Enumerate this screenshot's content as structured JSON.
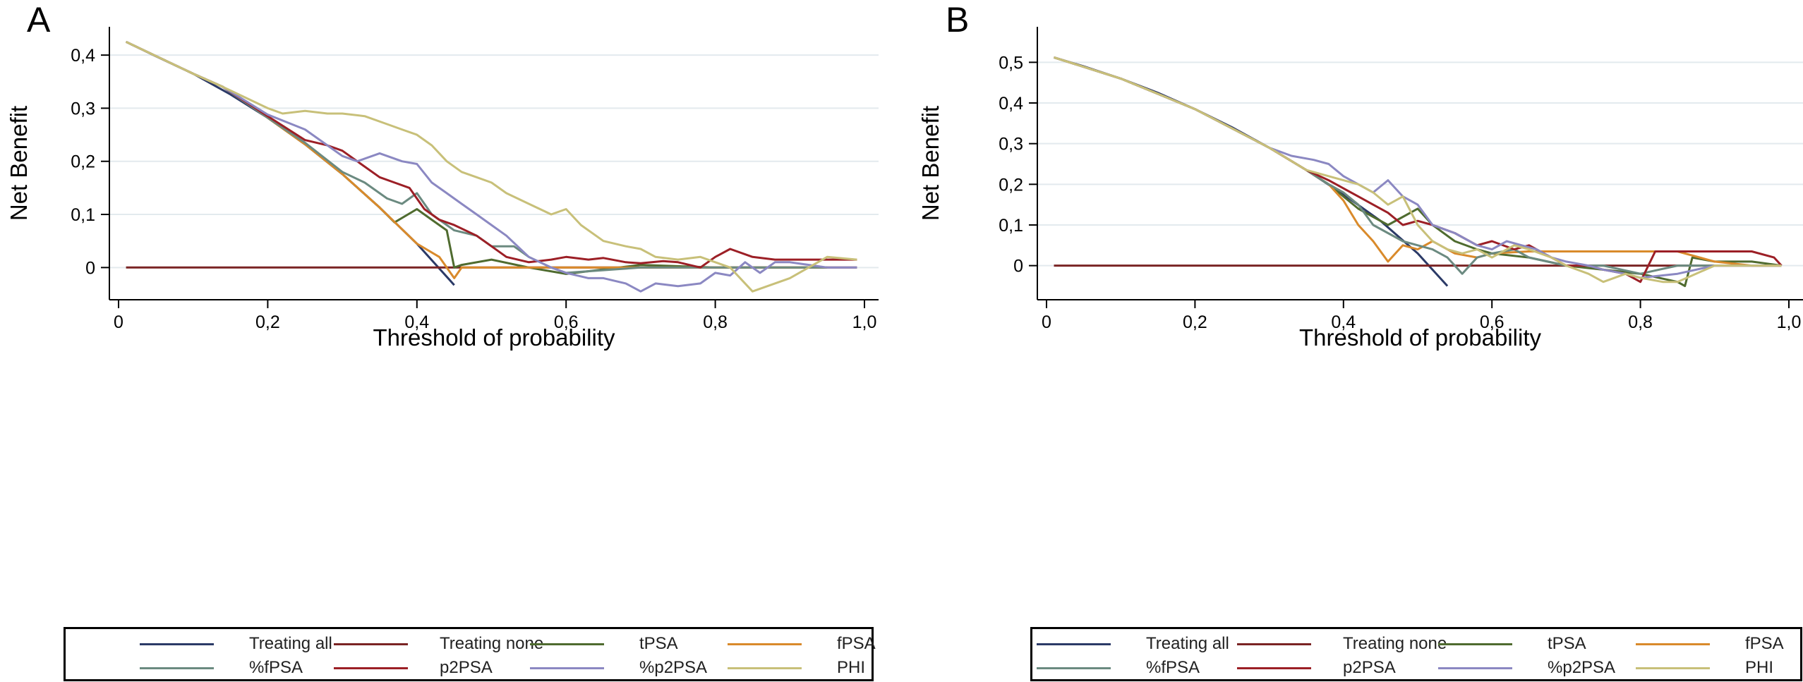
{
  "chart_data": [
    {
      "type": "line",
      "panel_label": "A",
      "xlabel": "Threshold of probability",
      "ylabel": "Net Benefit",
      "xlim": [
        0,
        1.0
      ],
      "ylim": [
        -0.05,
        0.44
      ],
      "xticks": [
        0,
        0.2,
        0.4,
        0.6,
        0.8,
        1.0
      ],
      "xtick_labels": [
        "0",
        "0,2",
        "0,4",
        "0,6",
        "0,8",
        "1,0"
      ],
      "yticks": [
        0,
        0.1,
        0.2,
        0.3,
        0.4
      ],
      "ytick_labels": [
        "0",
        "0,1",
        "0,2",
        "0,3",
        "0,4"
      ],
      "grid": true,
      "legend_position": "bottom",
      "series": [
        {
          "name": "Treating all",
          "color": "#2b3a67",
          "x": [
            0.01,
            0.05,
            0.1,
            0.15,
            0.2,
            0.25,
            0.3,
            0.35,
            0.4,
            0.45
          ],
          "y": [
            0.425,
            0.398,
            0.365,
            0.326,
            0.282,
            0.232,
            0.176,
            0.113,
            0.045,
            -0.033
          ]
        },
        {
          "name": "Treating none",
          "color": "#7a2424",
          "x": [
            0.01,
            0.99
          ],
          "y": [
            0,
            0
          ]
        },
        {
          "name": "tPSA",
          "color": "#4f6b2f",
          "x": [
            0.01,
            0.1,
            0.14,
            0.2,
            0.25,
            0.3,
            0.35,
            0.37,
            0.4,
            0.42,
            0.44,
            0.45,
            0.46,
            0.5,
            0.55,
            0.6,
            0.7,
            0.8,
            0.9,
            0.95
          ],
          "y": [
            0.425,
            0.365,
            0.34,
            0.282,
            0.232,
            0.176,
            0.113,
            0.085,
            0.11,
            0.09,
            0.07,
            0.0,
            0.005,
            0.015,
            0.0,
            -0.012,
            0.005,
            0.0,
            0.0,
            0.0
          ]
        },
        {
          "name": "fPSA",
          "color": "#d98a2b",
          "x": [
            0.01,
            0.1,
            0.14,
            0.2,
            0.25,
            0.3,
            0.35,
            0.4,
            0.43,
            0.45,
            0.46,
            0.47,
            0.5,
            0.55,
            0.6,
            0.7,
            0.8,
            0.9,
            0.95
          ],
          "y": [
            0.425,
            0.365,
            0.34,
            0.282,
            0.232,
            0.176,
            0.113,
            0.045,
            0.02,
            -0.02,
            0.0,
            0.0,
            0.0,
            0.0,
            0.0,
            0.0,
            0.0,
            0.0,
            0.0
          ]
        },
        {
          "name": "%fPSA",
          "color": "#6b8a80",
          "x": [
            0.01,
            0.1,
            0.14,
            0.2,
            0.25,
            0.3,
            0.33,
            0.36,
            0.38,
            0.4,
            0.42,
            0.45,
            0.48,
            0.5,
            0.53,
            0.55,
            0.58,
            0.6,
            0.7,
            0.8,
            0.9,
            0.95
          ],
          "y": [
            0.425,
            0.365,
            0.34,
            0.282,
            0.235,
            0.18,
            0.16,
            0.13,
            0.12,
            0.14,
            0.1,
            0.07,
            0.06,
            0.04,
            0.04,
            0.02,
            0.0,
            -0.01,
            0.0,
            0.0,
            0.0,
            0.0
          ]
        },
        {
          "name": "p2PSA",
          "color": "#9c1f26",
          "x": [
            0.01,
            0.1,
            0.14,
            0.2,
            0.25,
            0.28,
            0.3,
            0.32,
            0.35,
            0.37,
            0.39,
            0.41,
            0.43,
            0.45,
            0.48,
            0.5,
            0.52,
            0.55,
            0.58,
            0.6,
            0.63,
            0.65,
            0.68,
            0.7,
            0.73,
            0.75,
            0.78,
            0.8,
            0.82,
            0.85,
            0.88,
            0.9,
            0.95,
            0.99
          ],
          "y": [
            0.425,
            0.365,
            0.34,
            0.285,
            0.24,
            0.23,
            0.22,
            0.2,
            0.17,
            0.16,
            0.15,
            0.11,
            0.09,
            0.08,
            0.06,
            0.04,
            0.02,
            0.01,
            0.015,
            0.02,
            0.015,
            0.018,
            0.01,
            0.008,
            0.012,
            0.01,
            0.0,
            0.02,
            0.035,
            0.02,
            0.015,
            0.015,
            0.015,
            0.015
          ]
        },
        {
          "name": "%p2PSA",
          "color": "#8b88c2",
          "x": [
            0.01,
            0.1,
            0.14,
            0.2,
            0.25,
            0.28,
            0.3,
            0.32,
            0.35,
            0.38,
            0.4,
            0.42,
            0.44,
            0.46,
            0.48,
            0.5,
            0.52,
            0.55,
            0.58,
            0.6,
            0.63,
            0.65,
            0.68,
            0.7,
            0.72,
            0.75,
            0.78,
            0.8,
            0.82,
            0.84,
            0.86,
            0.88,
            0.9,
            0.95,
            0.99
          ],
          "y": [
            0.425,
            0.365,
            0.34,
            0.288,
            0.26,
            0.23,
            0.21,
            0.2,
            0.215,
            0.2,
            0.195,
            0.16,
            0.14,
            0.12,
            0.1,
            0.08,
            0.06,
            0.02,
            0.0,
            -0.01,
            -0.02,
            -0.02,
            -0.03,
            -0.045,
            -0.03,
            -0.035,
            -0.03,
            -0.01,
            -0.015,
            0.01,
            -0.01,
            0.01,
            0.01,
            0.0,
            0.0
          ]
        },
        {
          "name": "PHI",
          "color": "#c8c079",
          "x": [
            0.01,
            0.1,
            0.14,
            0.2,
            0.22,
            0.25,
            0.28,
            0.3,
            0.33,
            0.36,
            0.38,
            0.4,
            0.42,
            0.44,
            0.46,
            0.48,
            0.5,
            0.52,
            0.55,
            0.58,
            0.6,
            0.62,
            0.65,
            0.68,
            0.7,
            0.72,
            0.75,
            0.78,
            0.8,
            0.82,
            0.85,
            0.9,
            0.95,
            0.99
          ],
          "y": [
            0.425,
            0.365,
            0.34,
            0.3,
            0.29,
            0.295,
            0.29,
            0.29,
            0.285,
            0.27,
            0.26,
            0.25,
            0.23,
            0.2,
            0.18,
            0.17,
            0.16,
            0.14,
            0.12,
            0.1,
            0.11,
            0.08,
            0.05,
            0.04,
            0.035,
            0.02,
            0.015,
            0.02,
            0.01,
            0.0,
            -0.045,
            -0.02,
            0.02,
            0.015
          ]
        }
      ]
    },
    {
      "type": "line",
      "panel_label": "B",
      "xlabel": "Threshold of probability",
      "ylabel": "Net Benefit",
      "xlim": [
        0,
        1.0
      ],
      "ylim": [
        -0.07,
        0.57
      ],
      "xticks": [
        0,
        0.2,
        0.4,
        0.6,
        0.8,
        1.0
      ],
      "xtick_labels": [
        "0",
        "0,2",
        "0,4",
        "0,6",
        "0,8",
        "1,0"
      ],
      "yticks": [
        0,
        0.1,
        0.2,
        0.3,
        0.4,
        0.5
      ],
      "ytick_labels": [
        "0",
        "0,1",
        "0,2",
        "0,3",
        "0,4",
        "0,5"
      ],
      "grid": true,
      "legend_position": "bottom",
      "series": [
        {
          "name": "Treating all",
          "color": "#2b3a67",
          "x": [
            0.01,
            0.05,
            0.1,
            0.15,
            0.2,
            0.25,
            0.3,
            0.35,
            0.4,
            0.45,
            0.5,
            0.54
          ],
          "y": [
            0.512,
            0.49,
            0.46,
            0.425,
            0.385,
            0.34,
            0.29,
            0.235,
            0.175,
            0.11,
            0.03,
            -0.05
          ]
        },
        {
          "name": "Treating none",
          "color": "#7a2424",
          "x": [
            0.01,
            0.99
          ],
          "y": [
            0,
            0
          ]
        },
        {
          "name": "tPSA",
          "color": "#4f6b2f",
          "x": [
            0.01,
            0.1,
            0.2,
            0.3,
            0.35,
            0.38,
            0.4,
            0.42,
            0.44,
            0.46,
            0.48,
            0.5,
            0.52,
            0.55,
            0.58,
            0.6,
            0.65,
            0.7,
            0.75,
            0.8,
            0.85,
            0.86,
            0.87,
            0.9,
            0.95,
            0.99
          ],
          "y": [
            0.512,
            0.46,
            0.385,
            0.29,
            0.235,
            0.2,
            0.17,
            0.14,
            0.12,
            0.1,
            0.12,
            0.14,
            0.1,
            0.06,
            0.04,
            0.03,
            0.02,
            0.0,
            -0.01,
            -0.02,
            -0.04,
            -0.05,
            0.02,
            0.01,
            0.01,
            0.0
          ]
        },
        {
          "name": "fPSA",
          "color": "#d98a2b",
          "x": [
            0.01,
            0.1,
            0.2,
            0.3,
            0.35,
            0.38,
            0.4,
            0.42,
            0.44,
            0.46,
            0.48,
            0.5,
            0.52,
            0.55,
            0.58,
            0.6,
            0.65,
            0.7,
            0.75,
            0.8,
            0.85,
            0.9,
            0.95,
            0.99
          ],
          "y": [
            0.512,
            0.46,
            0.385,
            0.29,
            0.235,
            0.2,
            0.16,
            0.1,
            0.06,
            0.01,
            0.05,
            0.04,
            0.06,
            0.03,
            0.02,
            0.03,
            0.035,
            0.035,
            0.035,
            0.035,
            0.035,
            0.01,
            0.0,
            0.0
          ]
        },
        {
          "name": "%fPSA",
          "color": "#6b8a80",
          "x": [
            0.01,
            0.1,
            0.2,
            0.3,
            0.35,
            0.38,
            0.4,
            0.42,
            0.44,
            0.46,
            0.48,
            0.5,
            0.52,
            0.54,
            0.56,
            0.58,
            0.6,
            0.63,
            0.65,
            0.7,
            0.75,
            0.8,
            0.85,
            0.9,
            0.95,
            0.99
          ],
          "y": [
            0.512,
            0.46,
            0.385,
            0.29,
            0.235,
            0.2,
            0.18,
            0.15,
            0.1,
            0.08,
            0.06,
            0.05,
            0.04,
            0.02,
            -0.02,
            0.02,
            0.03,
            0.04,
            0.02,
            0.0,
            0.0,
            -0.02,
            0.0,
            0.0,
            0.0,
            0.0
          ]
        },
        {
          "name": "p2PSA",
          "color": "#9c1f26",
          "x": [
            0.01,
            0.1,
            0.2,
            0.3,
            0.35,
            0.38,
            0.4,
            0.42,
            0.44,
            0.46,
            0.48,
            0.5,
            0.52,
            0.55,
            0.58,
            0.6,
            0.63,
            0.65,
            0.68,
            0.7,
            0.73,
            0.75,
            0.78,
            0.8,
            0.82,
            0.85,
            0.9,
            0.95,
            0.98,
            0.99
          ],
          "y": [
            0.512,
            0.46,
            0.385,
            0.29,
            0.235,
            0.21,
            0.19,
            0.17,
            0.15,
            0.13,
            0.1,
            0.11,
            0.1,
            0.08,
            0.05,
            0.06,
            0.04,
            0.05,
            0.02,
            0.0,
            0.0,
            -0.01,
            -0.02,
            -0.04,
            0.035,
            0.035,
            0.035,
            0.035,
            0.02,
            0.0
          ]
        },
        {
          "name": "%p2PSA",
          "color": "#8b88c2",
          "x": [
            0.01,
            0.1,
            0.2,
            0.3,
            0.33,
            0.36,
            0.38,
            0.4,
            0.42,
            0.44,
            0.46,
            0.48,
            0.5,
            0.52,
            0.55,
            0.58,
            0.6,
            0.62,
            0.64,
            0.66,
            0.68,
            0.7,
            0.73,
            0.75,
            0.78,
            0.8,
            0.85,
            0.9,
            0.95,
            0.99
          ],
          "y": [
            0.512,
            0.46,
            0.385,
            0.29,
            0.27,
            0.26,
            0.25,
            0.22,
            0.2,
            0.18,
            0.21,
            0.17,
            0.15,
            0.1,
            0.08,
            0.05,
            0.04,
            0.06,
            0.05,
            0.04,
            0.02,
            0.01,
            0.0,
            -0.01,
            -0.02,
            -0.03,
            -0.02,
            0.0,
            0.0,
            0.0
          ]
        },
        {
          "name": "PHI",
          "color": "#c8c079",
          "x": [
            0.01,
            0.1,
            0.2,
            0.3,
            0.35,
            0.38,
            0.4,
            0.42,
            0.44,
            0.46,
            0.48,
            0.5,
            0.52,
            0.54,
            0.56,
            0.58,
            0.6,
            0.63,
            0.65,
            0.68,
            0.7,
            0.73,
            0.75,
            0.78,
            0.8,
            0.83,
            0.85,
            0.9,
            0.95,
            0.99
          ],
          "y": [
            0.512,
            0.46,
            0.385,
            0.29,
            0.235,
            0.22,
            0.21,
            0.2,
            0.18,
            0.15,
            0.17,
            0.1,
            0.06,
            0.04,
            0.03,
            0.04,
            0.02,
            0.05,
            0.04,
            0.02,
            0.0,
            -0.02,
            -0.04,
            -0.02,
            -0.03,
            -0.04,
            -0.04,
            0.0,
            0.0,
            0.0
          ]
        }
      ]
    }
  ]
}
